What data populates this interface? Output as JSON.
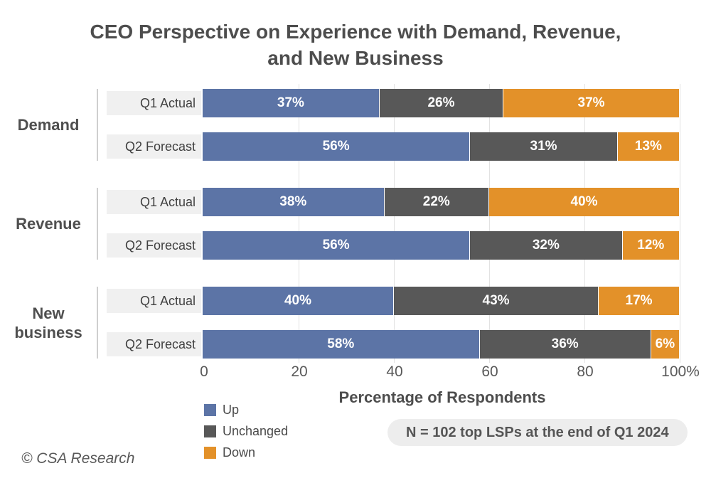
{
  "title": {
    "line1": "CEO Perspective on Experience with Demand, Revenue,",
    "line2": "and New Business"
  },
  "note": "N = 102 top LSPs at the end of Q1 2024",
  "footer": "© CSA Research",
  "colors": {
    "up": "#5C74A6",
    "unchanged": "#585858",
    "down": "#E39129",
    "label_box_bg": "#F0F0F0",
    "badge_bg": "#EDEDED",
    "gridline": "#E2E2E2",
    "divider": "#CFCFCF",
    "text_dark": "#4D4D4D"
  },
  "chart_data": {
    "type": "bar",
    "orientation": "horizontal",
    "stacked": true,
    "title": "CEO Perspective on Experience with Demand, Revenue, and New Business",
    "xlabel": "Percentage of Respondents",
    "xlim": [
      0,
      100
    ],
    "x_ticks": [
      {
        "value": 0,
        "label": "0"
      },
      {
        "value": 20,
        "label": "20"
      },
      {
        "value": 40,
        "label": "40"
      },
      {
        "value": 60,
        "label": "60"
      },
      {
        "value": 80,
        "label": "80"
      },
      {
        "value": 100,
        "label": "100%"
      }
    ],
    "grid": "vertical-at-20-percent-steps",
    "legend_position": "bottom-left",
    "value_suffix": "%",
    "series": [
      {
        "name": "Up",
        "color": "#5C74A6"
      },
      {
        "name": "Unchanged",
        "color": "#585858"
      },
      {
        "name": "Down",
        "color": "#E39129"
      }
    ],
    "groups": [
      {
        "category": "Demand",
        "bars": [
          {
            "label": "Q1 Actual",
            "values": [
              37,
              26,
              37
            ]
          },
          {
            "label": "Q2 Forecast",
            "values": [
              56,
              31,
              13
            ]
          }
        ]
      },
      {
        "category": "Revenue",
        "bars": [
          {
            "label": "Q1 Actual",
            "values": [
              38,
              22,
              40
            ]
          },
          {
            "label": "Q2 Forecast",
            "values": [
              56,
              32,
              12
            ]
          }
        ]
      },
      {
        "category": "New business",
        "bars": [
          {
            "label": "Q1 Actual",
            "values": [
              40,
              43,
              17
            ]
          },
          {
            "label": "Q2 Forecast",
            "values": [
              58,
              36,
              6
            ]
          }
        ]
      }
    ]
  }
}
